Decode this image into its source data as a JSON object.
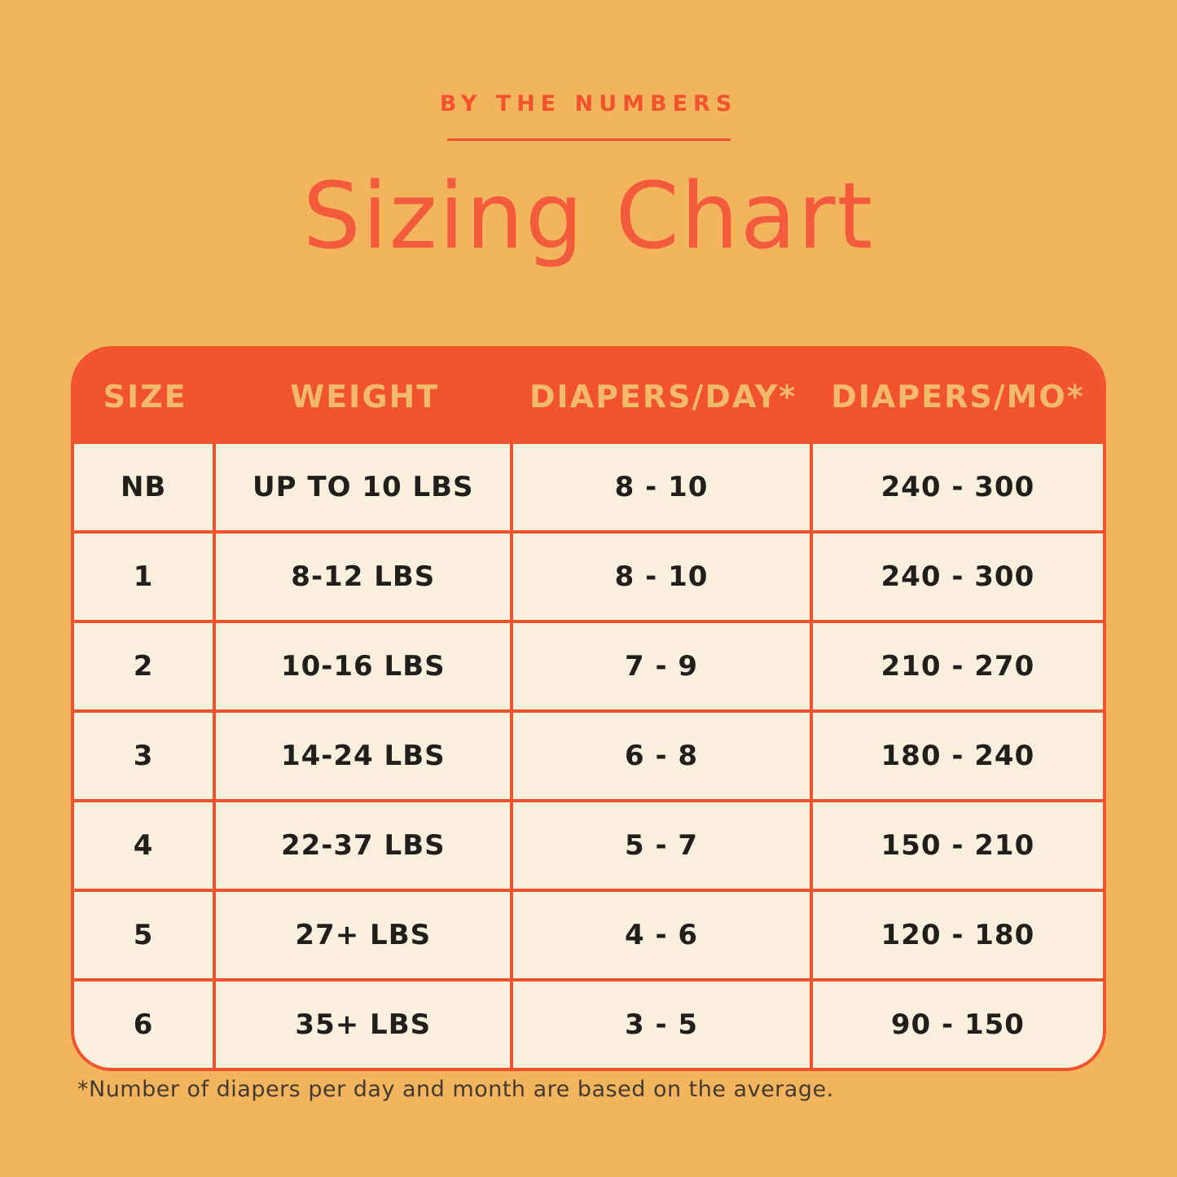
{
  "page": {
    "background_color": "#F2B45C",
    "accent_color": "#F1532F",
    "title_color": "#F25B3C",
    "header_text_color": "#F3BA6C",
    "body_bg_color": "#FBF0DE",
    "body_text_color": "#211E1B"
  },
  "header": {
    "eyebrow": "BY THE NUMBERS",
    "title": "Sizing Chart"
  },
  "table": {
    "columns": [
      "SIZE",
      "WEIGHT",
      "DIAPERS/DAY*",
      "DIAPERS/MO*"
    ],
    "rows": [
      [
        "NB",
        "UP TO 10 LBS",
        "8 - 10",
        "240 - 300"
      ],
      [
        "1",
        "8-12 LBS",
        "8 - 10",
        "240 - 300"
      ],
      [
        "2",
        "10-16 LBS",
        "7 - 9",
        "210 - 270"
      ],
      [
        "3",
        "14-24 LBS",
        "6 - 8",
        "180 - 240"
      ],
      [
        "4",
        "22-37 LBS",
        "5 - 7",
        "150 - 210"
      ],
      [
        "5",
        "27+ LBS",
        "4 - 6",
        "120 - 180"
      ],
      [
        "6",
        "35+ LBS",
        "3 - 5",
        "90 - 150"
      ]
    ]
  },
  "footnote": "*Number of diapers per day and month are based on the average."
}
